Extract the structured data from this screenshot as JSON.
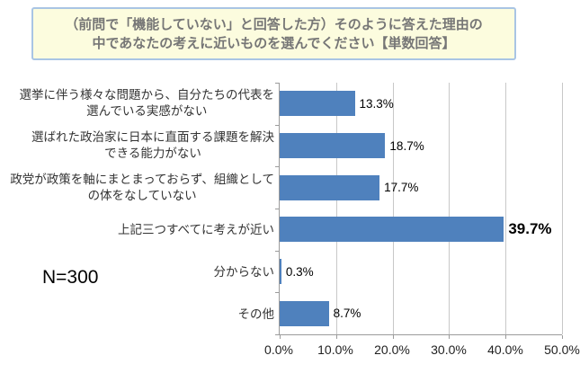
{
  "title": {
    "line1": "（前問で「機能していない」と回答した方）そのように答えた理由の",
    "line2": "中であなたの考えに近いものを選んでください【単数回答】"
  },
  "sample_label": "N=300",
  "chart_data": {
    "type": "bar",
    "orientation": "horizontal",
    "categories": [
      "選挙に伴う様々な問題から、自分たちの代表を\n選んでいる実感がない",
      "選ばれた政治家に日本に直面する課題を解決\nできる能力がない",
      "政党が政策を軸にまとまっておらず、組織として\nの体をなしていない",
      "上記三つすべてに考えが近い",
      "分からない",
      "その他"
    ],
    "values": [
      13.3,
      18.7,
      17.7,
      39.7,
      0.3,
      8.7
    ],
    "value_labels": [
      "13.3%",
      "18.7%",
      "17.7%",
      "39.7%",
      "0.3%",
      "8.7%"
    ],
    "emphasized_value_index": 3,
    "xlim": [
      0,
      50
    ],
    "x_ticks": [
      "0.0%",
      "10.0%",
      "20.0%",
      "30.0%",
      "40.0%",
      "50.0%"
    ],
    "grid": true,
    "legend": false,
    "xlabel": "",
    "ylabel": ""
  },
  "colors": {
    "bar": "#4F81BD",
    "title_background": "#FCFCDE",
    "title_border": "#A9C5E4",
    "title_text": "#767676",
    "gridline": "#C8C8C8",
    "axis": "#9B9B9B"
  }
}
